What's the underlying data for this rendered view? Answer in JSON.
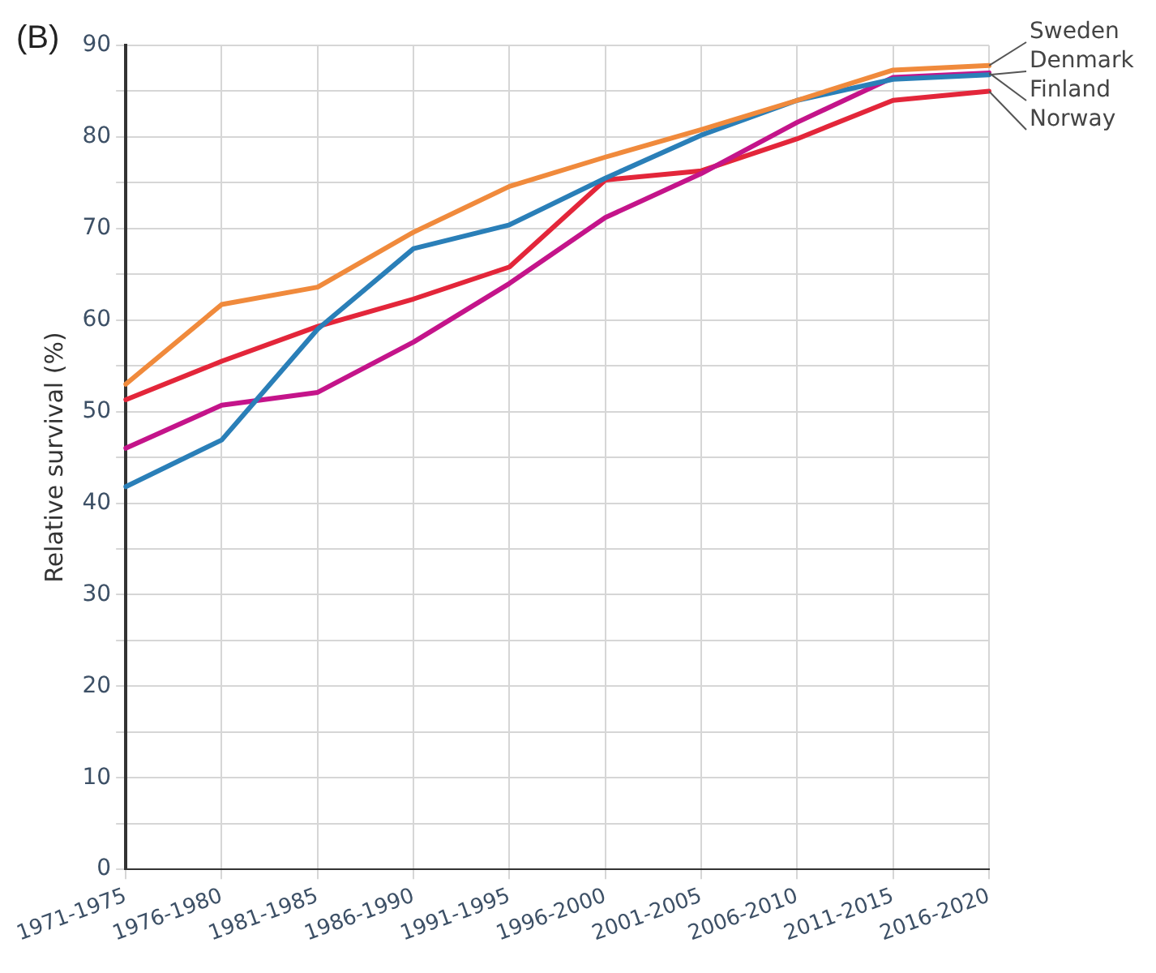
{
  "chart_data": {
    "type": "line",
    "title": "(B)",
    "ylabel": "Relative survival (%)",
    "categories": [
      "1971-1975",
      "1976-1980",
      "1981-1985",
      "1986-1990",
      "1991-1995",
      "1996-2000",
      "2001-2005",
      "2006-2010",
      "2011-2015",
      "2016-2020"
    ],
    "series": [
      {
        "name": "Sweden",
        "color": "#f08a3c",
        "values": [
          53,
          61.7,
          63.6,
          69.6,
          74.6,
          77.8,
          80.8,
          84,
          87.3,
          87.8
        ]
      },
      {
        "name": "Denmark",
        "color": "#2a7fb8",
        "values": [
          41.8,
          46.9,
          59,
          67.8,
          70.4,
          75.5,
          80.2,
          84,
          86.3,
          86.8
        ]
      },
      {
        "name": "Finland",
        "color": "#c4148a",
        "values": [
          46,
          50.7,
          52.1,
          57.6,
          64,
          71.2,
          76,
          81.6,
          86.5,
          87
        ]
      },
      {
        "name": "Norway",
        "color": "#e3263a",
        "values": [
          51.3,
          55.5,
          59.3,
          62.3,
          65.8,
          75.3,
          76.3,
          79.8,
          84,
          85
        ]
      }
    ],
    "ylim": [
      0,
      90
    ],
    "yticks": [
      0,
      {
        "value": 5,
        "label": null
      },
      10,
      {
        "value": 15,
        "label": null
      },
      20,
      {
        "value": 25,
        "label": null
      },
      30,
      {
        "value": 35,
        "label": null
      },
      40,
      {
        "value": 45,
        "label": null
      },
      50,
      {
        "value": 55,
        "label": null
      },
      60,
      {
        "value": 65,
        "label": null
      },
      70,
      {
        "value": 75,
        "label": null
      },
      80,
      {
        "value": 85,
        "label": null
      },
      90
    ],
    "grid": true,
    "legend": false,
    "marker": "none",
    "line_style": "solid"
  }
}
